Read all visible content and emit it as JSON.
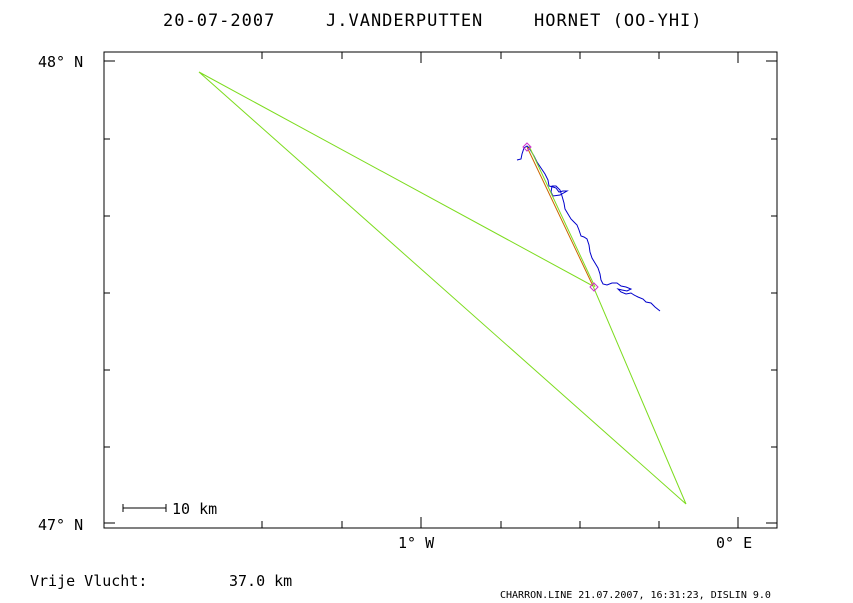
{
  "title": {
    "date": "20-07-2007",
    "pilot": "J.VANDERPUTTEN",
    "glider": "HORNET (OO-YHI)"
  },
  "axes": {
    "lat_top": "48° N",
    "lat_bottom": "47° N",
    "lon_left": "1° W",
    "lon_right": "0° E"
  },
  "scale_bar": {
    "label": "10 km"
  },
  "footer": {
    "label": "Vrije Vlucht:",
    "value": "37.0 km"
  },
  "stamp": "CHARRON.LINE 21.07.2007, 16:31:23, DISLIN 9.0",
  "colors": {
    "frame": "#000000",
    "task": "#7ddc1f",
    "track": "#0000cc",
    "turnpoint": "#cc33cc",
    "leg": "#cc6600"
  }
}
